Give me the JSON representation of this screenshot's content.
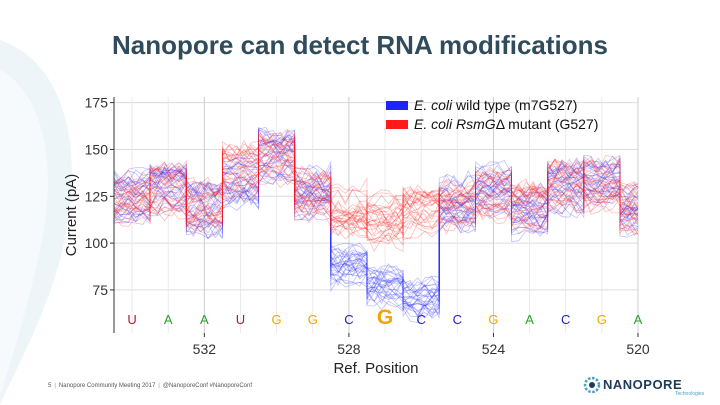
{
  "slide": {
    "title": "Nanopore can detect RNA modifications",
    "footer": {
      "page": "5",
      "event": "Nanopore Community Meeting 2017",
      "handles": "@NanoporeConf #NanoporeConf"
    },
    "logo": {
      "word": "NANOPORE",
      "sub": "Technologies"
    }
  },
  "colors": {
    "wild_type": "#1f24ff",
    "mutant": "#ff1a1a",
    "base_U": "#b2182b",
    "base_A": "#2ca02c",
    "base_G": "#f0a500",
    "base_C": "#2222bb",
    "title": "#2f4b5c"
  },
  "chart_data": {
    "type": "line",
    "xlabel": "Ref. Position",
    "ylabel": "Current (pA)",
    "x_reversed": true,
    "xlim": [
      534.5,
      520
    ],
    "ylim": [
      52,
      178
    ],
    "x_ticks": [
      532,
      528,
      524,
      520
    ],
    "y_ticks": [
      75,
      100,
      125,
      150,
      175
    ],
    "grid": true,
    "legend_position": "top-right",
    "legend": [
      {
        "italic": "E. coli",
        "rest": " wild type (m7G527)",
        "color_key": "wild_type"
      },
      {
        "italic": "E. coli RsmG",
        "rest": "Δ mutant (G527)",
        "color_key": "mutant"
      }
    ],
    "bases": [
      {
        "pos": 534,
        "base": "U"
      },
      {
        "pos": 533,
        "base": "A"
      },
      {
        "pos": 532,
        "base": "A"
      },
      {
        "pos": 531,
        "base": "U"
      },
      {
        "pos": 530,
        "base": "G"
      },
      {
        "pos": 529,
        "base": "G"
      },
      {
        "pos": 528,
        "base": "C"
      },
      {
        "pos": 527,
        "base": "G",
        "highlight": true
      },
      {
        "pos": 526,
        "base": "C"
      },
      {
        "pos": 525,
        "base": "C"
      },
      {
        "pos": 524,
        "base": "G"
      },
      {
        "pos": 523,
        "base": "A"
      },
      {
        "pos": 522,
        "base": "C"
      },
      {
        "pos": 521,
        "base": "G"
      },
      {
        "pos": 520,
        "base": "A"
      }
    ],
    "series": [
      {
        "name": "E. coli wild type (m7G527)",
        "color_key": "wild_type",
        "mean_current": [
          126,
          130,
          118,
          132,
          146,
          128,
          88,
          76,
          70,
          122,
          128,
          116,
          130,
          134,
          118
        ],
        "trace_count": 30
      },
      {
        "name": "E. coli RsmGΔ mutant (G527)",
        "color_key": "mutant",
        "mean_current": [
          124,
          128,
          120,
          138,
          146,
          125,
          118,
          112,
          116,
          120,
          125,
          118,
          130,
          132,
          118
        ],
        "trace_count": 30
      }
    ]
  }
}
